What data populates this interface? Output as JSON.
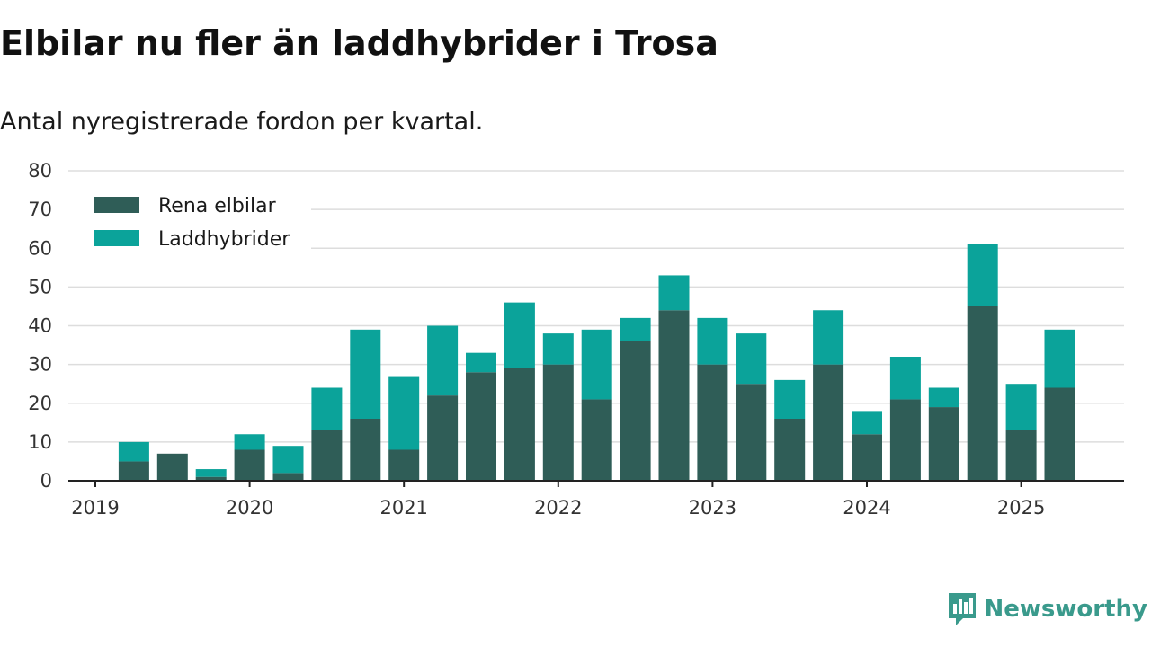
{
  "title": "Elbilar nu fler än laddhybrider i Trosa",
  "subtitle": "Antal nyregistrerade fordon per kvartal.",
  "brand": {
    "name": "Newsworthy",
    "icon": "newsworthy-logo-icon"
  },
  "colors": {
    "rena_elbilar": "#2f5d57",
    "laddhybrider": "#0ba39a",
    "grid": "#dddddd",
    "axis": "#222222"
  },
  "chart_data": {
    "type": "bar",
    "stacked": true,
    "categories": [
      "2019 Q1",
      "2019 Q2",
      "2019 Q3",
      "2019 Q4",
      "2020 Q1",
      "2020 Q2",
      "2020 Q3",
      "2020 Q4",
      "2021 Q1",
      "2021 Q2",
      "2021 Q3",
      "2021 Q4",
      "2022 Q1",
      "2022 Q2",
      "2022 Q3",
      "2022 Q4",
      "2023 Q1",
      "2023 Q2",
      "2023 Q3",
      "2023 Q4",
      "2024 Q1",
      "2024 Q2",
      "2024 Q3",
      "2024 Q4",
      "2025 Q1",
      "2025 Q2"
    ],
    "series": [
      {
        "name": "Rena elbilar",
        "values": [
          0,
          5,
          7,
          1,
          8,
          2,
          13,
          16,
          8,
          22,
          28,
          29,
          30,
          21,
          36,
          44,
          30,
          25,
          16,
          30,
          12,
          21,
          19,
          45,
          13,
          24
        ]
      },
      {
        "name": "Laddhybrider",
        "values": [
          0,
          5,
          0,
          2,
          4,
          7,
          11,
          23,
          19,
          18,
          5,
          17,
          8,
          18,
          6,
          9,
          12,
          13,
          10,
          14,
          6,
          11,
          5,
          16,
          12,
          15
        ]
      }
    ],
    "x_tick_labels": [
      "2019",
      "2020",
      "2021",
      "2022",
      "2023",
      "2024",
      "2025"
    ],
    "y_ticks": [
      "0",
      "10",
      "20",
      "30",
      "40",
      "50",
      "60",
      "70",
      "80"
    ],
    "ylim": [
      0,
      80
    ],
    "xlabel": "",
    "ylabel": "",
    "grid": true,
    "legend_position": "top-left"
  }
}
